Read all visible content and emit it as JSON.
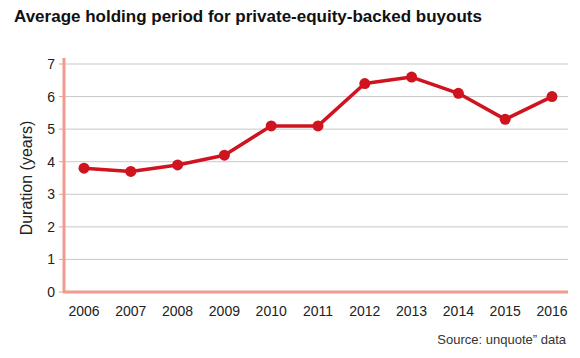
{
  "chart_data": {
    "type": "line",
    "title": "Average holding period for private-equity-backed buyouts",
    "y_label": "Duration (years)",
    "source": "Source: unquote” data",
    "categories": [
      "2006",
      "2007",
      "2008",
      "2009",
      "2010",
      "2011",
      "2012",
      "2013",
      "2014",
      "2015",
      "2016"
    ],
    "values": [
      3.8,
      3.7,
      3.9,
      4.2,
      5.1,
      5.1,
      6.4,
      6.6,
      6.1,
      5.3,
      6.0
    ],
    "color": "#d0141f",
    "marker": "circle",
    "ylim": [
      0,
      7
    ],
    "yticks": [
      0,
      1,
      2,
      3,
      4,
      5,
      6,
      7
    ],
    "grid": true
  }
}
